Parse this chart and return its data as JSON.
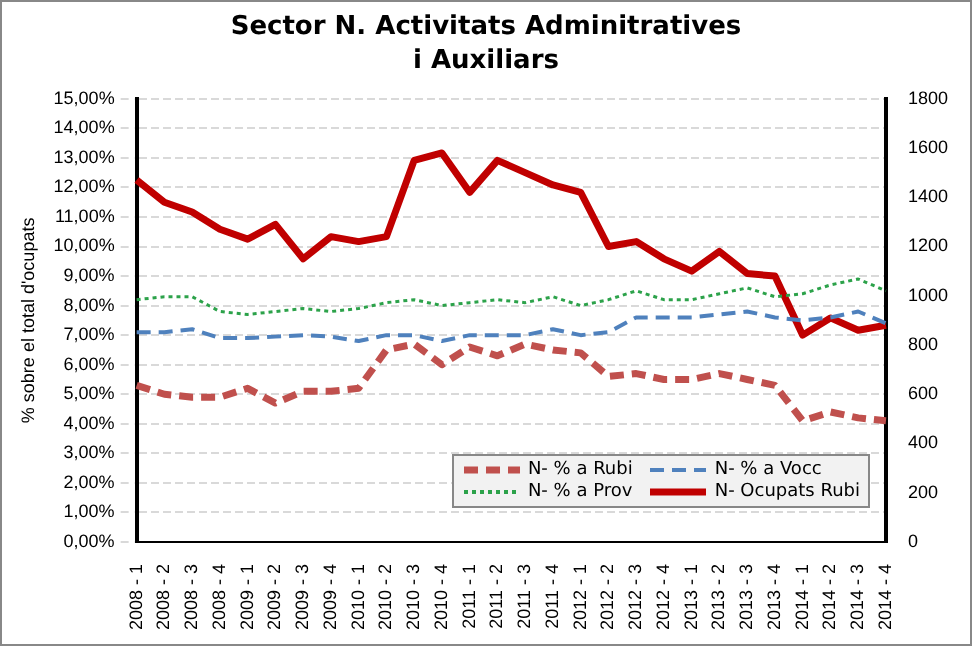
{
  "chart_data": {
    "type": "line",
    "title": "Sector N. Activitats Adminitratives\ni Auxiliars",
    "ylabel": "% sobre el total d'ocupats",
    "categories": [
      "2008 - 1",
      "2008 - 2",
      "2008 - 3",
      "2008 - 4",
      "2009 - 1",
      "2009 - 2",
      "2009 - 3",
      "2009 - 4",
      "2010 - 1",
      "2010 - 2",
      "2010 - 3",
      "2010 - 4",
      "2011 - 1",
      "2011 - 2",
      "2011 - 3",
      "2011 - 4",
      "2012 - 1",
      "2012 - 2",
      "2012 - 3",
      "2012 - 4",
      "2013 - 1",
      "2013 - 2",
      "2013 - 3",
      "2013 - 4",
      "2014 - 1",
      "2014 - 2",
      "2014 - 3",
      "2014 - 4"
    ],
    "series": [
      {
        "name": "N- % a Rubi",
        "color": "#c0504d",
        "line_style": "dashed",
        "values": [
          5.3,
          5.0,
          4.9,
          4.9,
          5.2,
          4.7,
          5.1,
          5.1,
          5.2,
          6.5,
          6.7,
          6.0,
          6.6,
          6.3,
          6.7,
          6.5,
          6.4,
          5.6,
          5.7,
          5.5,
          5.5,
          5.7,
          5.5,
          5.3,
          4.1,
          4.4,
          4.2,
          4.1
        ]
      },
      {
        "name": "N- % a Vocc",
        "color": "#4f81bd",
        "line_style": "dashed",
        "values": [
          7.1,
          7.1,
          7.2,
          6.9,
          6.9,
          6.95,
          7.0,
          6.95,
          6.8,
          7.0,
          7.0,
          6.8,
          7.0,
          7.0,
          7.0,
          7.2,
          7.0,
          7.1,
          7.6,
          7.6,
          7.6,
          7.7,
          7.8,
          7.6,
          7.5,
          7.6,
          7.8,
          7.4
        ]
      },
      {
        "name": "N- % a Prov",
        "color": "#2ca24a",
        "line_style": "dotted",
        "values": [
          8.2,
          8.3,
          8.3,
          7.8,
          7.7,
          7.8,
          7.9,
          7.8,
          7.9,
          8.1,
          8.2,
          8.0,
          8.1,
          8.2,
          8.1,
          8.3,
          8.0,
          8.2,
          8.5,
          8.2,
          8.2,
          8.4,
          8.6,
          8.3,
          8.4,
          8.7,
          8.9,
          8.5
        ]
      },
      {
        "name": "N- Ocupats Rubi",
        "color": "#c00000",
        "line_style": "solid",
        "axis": "y2",
        "values": [
          1470,
          1380,
          1340,
          1270,
          1230,
          1290,
          1150,
          1240,
          1220,
          1240,
          1550,
          1580,
          1420,
          1550,
          1500,
          1450,
          1420,
          1200,
          1220,
          1150,
          1100,
          1180,
          1090,
          1080,
          840,
          910,
          860,
          880
        ]
      }
    ],
    "ylim": [
      0,
      15
    ],
    "yticks": [
      {
        "value": 0,
        "label": "0,00%"
      },
      {
        "value": 1,
        "label": "1,00%"
      },
      {
        "value": 2,
        "label": "2,00%"
      },
      {
        "value": 3,
        "label": "3,00%"
      },
      {
        "value": 4,
        "label": "4,00%"
      },
      {
        "value": 5,
        "label": "5,00%"
      },
      {
        "value": 6,
        "label": "6,00%"
      },
      {
        "value": 7,
        "label": "7,00%"
      },
      {
        "value": 8,
        "label": "8,00%"
      },
      {
        "value": 9,
        "label": "9,00%"
      },
      {
        "value": 10,
        "label": "10,00%"
      },
      {
        "value": 11,
        "label": "11,00%"
      },
      {
        "value": 12,
        "label": "12,00%"
      },
      {
        "value": 13,
        "label": "13,00%"
      },
      {
        "value": 14,
        "label": "14,00%"
      },
      {
        "value": 15,
        "label": "15,00%"
      }
    ],
    "y2lim": [
      0,
      1800
    ],
    "y2ticks": [
      0,
      200,
      400,
      600,
      800,
      1000,
      1200,
      1400,
      1600,
      1800
    ],
    "grid": "y",
    "legend": "bottom right",
    "marker": "none"
  }
}
